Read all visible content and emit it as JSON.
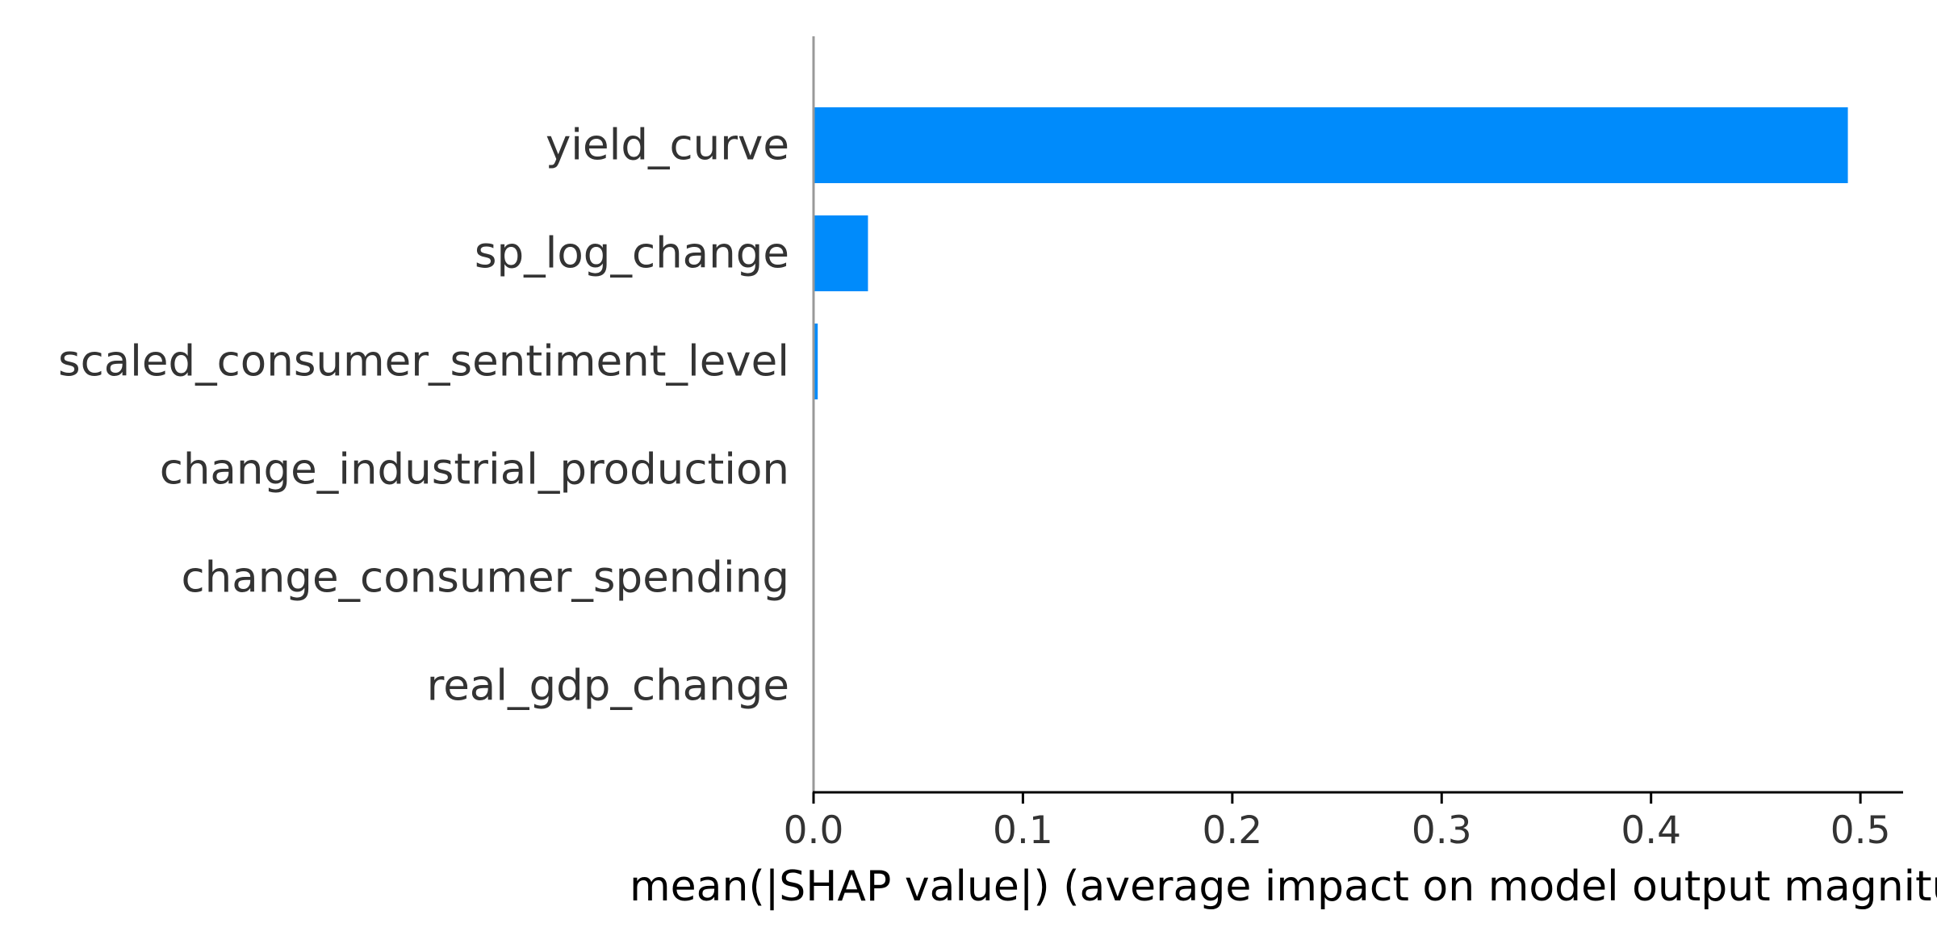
{
  "chart_data": {
    "type": "bar",
    "orientation": "horizontal",
    "title": "",
    "xlabel": "mean(|SHAP value|) (average impact on model output magnitude)",
    "ylabel": "",
    "categories": [
      "yield_curve",
      "sp_log_change",
      "scaled_consumer_sentiment_level",
      "change_industrial_production",
      "change_consumer_spending",
      "real_gdp_change"
    ],
    "values": [
      0.494,
      0.026,
      0.002,
      0.0,
      0.0,
      0.0
    ],
    "xlim": [
      0.0,
      0.52
    ],
    "xticks": [
      "0.0",
      "0.1",
      "0.2",
      "0.3",
      "0.4",
      "0.5"
    ],
    "grid": false,
    "legend": "none",
    "bar_color": "#008bfb"
  }
}
